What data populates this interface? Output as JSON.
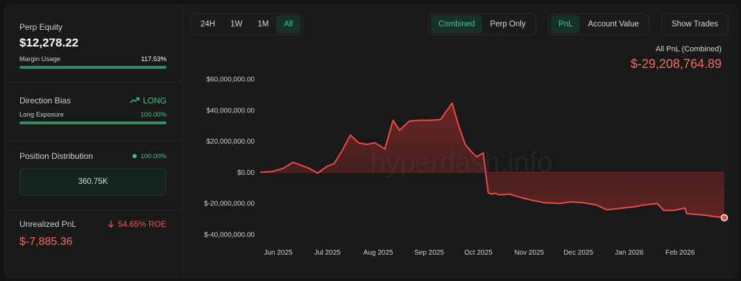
{
  "left_panel": {
    "perp_equity": {
      "label": "Perp Equity",
      "value": "$12,278.22"
    },
    "margin_usage": {
      "label": "Margin Usage",
      "value": "117.53%",
      "fill": 1.0
    },
    "direction_bias": {
      "label": "Direction Bias",
      "value": "LONG",
      "icon": "trending-up-icon"
    },
    "long_exposure": {
      "label": "Long Exposure",
      "value": "100.00%",
      "fill": 1.0
    },
    "position_distribution": {
      "label": "Position Distribution",
      "value": "100.00%",
      "box_value": "360.75K"
    },
    "unrealized_pnl": {
      "label": "Unrealized PnL",
      "roe": "54.65% ROE",
      "value": "$-7,885.36",
      "icon": "arrow-down-icon"
    }
  },
  "toolbar": {
    "timeframes": [
      "24H",
      "1W",
      "1M",
      "All"
    ],
    "timeframe_active": "All",
    "modes": [
      "Combined",
      "Perp Only"
    ],
    "mode_active": "Combined",
    "metrics": [
      "PnL",
      "Account Value"
    ],
    "metric_active": "PnL",
    "show_trades": "Show Trades"
  },
  "pnl_header": {
    "title": "All PnL (Combined)",
    "value": "$-29,208,764.89"
  },
  "watermark": "hyperdash.info",
  "colors": {
    "accent_green": "#37c88a",
    "loss_red": "#ef5350",
    "background": "#191919"
  },
  "chart_data": {
    "type": "area",
    "title": "",
    "xlabel": "",
    "ylabel": "",
    "ylim": [
      -40000000,
      60000000
    ],
    "y_ticks": [
      60000000,
      40000000,
      20000000,
      0,
      -20000000,
      -40000000
    ],
    "y_tick_labels": [
      "$60,000,000.00",
      "$40,000,000.00",
      "$20,000,000.00",
      "$0.00",
      "$-20,000,000.00",
      "$-40,000,000.00"
    ],
    "x_tick_labels": [
      "Jun 2025",
      "Jul 2025",
      "Aug 2025",
      "Sep 2025",
      "Oct 2025",
      "Nov 2025",
      "Dec 2025",
      "Jan 2026",
      "Feb 2026"
    ],
    "x_tick_dates": [
      "2025-06-01",
      "2025-07-01",
      "2025-08-01",
      "2025-09-01",
      "2025-10-01",
      "2025-11-01",
      "2025-12-01",
      "2026-01-01",
      "2026-02-01"
    ],
    "x_range": [
      "2025-05-21",
      "2026-02-28"
    ],
    "grid": false,
    "legend": "none",
    "series": [
      {
        "x": [
          "2025-05-21",
          "2025-05-28",
          "2025-06-04",
          "2025-06-10",
          "2025-06-15",
          "2025-06-20",
          "2025-06-25",
          "2025-07-01",
          "2025-07-05",
          "2025-07-10",
          "2025-07-15",
          "2025-07-20",
          "2025-07-25",
          "2025-07-30",
          "2025-08-05",
          "2025-08-10",
          "2025-08-14",
          "2025-08-20",
          "2025-08-26",
          "2025-09-01",
          "2025-09-08",
          "2025-09-15",
          "2025-09-19",
          "2025-09-23",
          "2025-09-27",
          "2025-09-30",
          "2025-10-04",
          "2025-10-07",
          "2025-10-09",
          "2025-10-11",
          "2025-10-14",
          "2025-10-20",
          "2025-10-28",
          "2025-11-03",
          "2025-11-10",
          "2025-11-20",
          "2025-11-26",
          "2025-12-04",
          "2025-12-12",
          "2025-12-18",
          "2025-12-24",
          "2025-12-28",
          "2026-01-05",
          "2026-01-10",
          "2026-01-18",
          "2026-01-22",
          "2026-01-28",
          "2026-02-04",
          "2026-02-05",
          "2026-02-10",
          "2026-02-16",
          "2026-02-22",
          "2026-02-28"
        ],
        "values": [
          0,
          500000,
          2500000,
          6500000,
          4500000,
          2500000,
          -500000,
          4000000,
          5500000,
          14000000,
          24000000,
          19000000,
          18000000,
          19000000,
          15000000,
          33500000,
          27000000,
          33000000,
          33500000,
          33500000,
          34000000,
          44500000,
          30000000,
          18000000,
          13000000,
          10000000,
          12500000,
          -13000000,
          -14000000,
          -13500000,
          -14500000,
          -14000000,
          -16500000,
          -18000000,
          -19500000,
          -20000000,
          -19000000,
          -19500000,
          -21000000,
          -24000000,
          -23500000,
          -23000000,
          -22000000,
          -21000000,
          -20000000,
          -24500000,
          -24500000,
          -23000000,
          -26500000,
          -27000000,
          -27500000,
          -28500000,
          -29208764
        ]
      }
    ]
  }
}
